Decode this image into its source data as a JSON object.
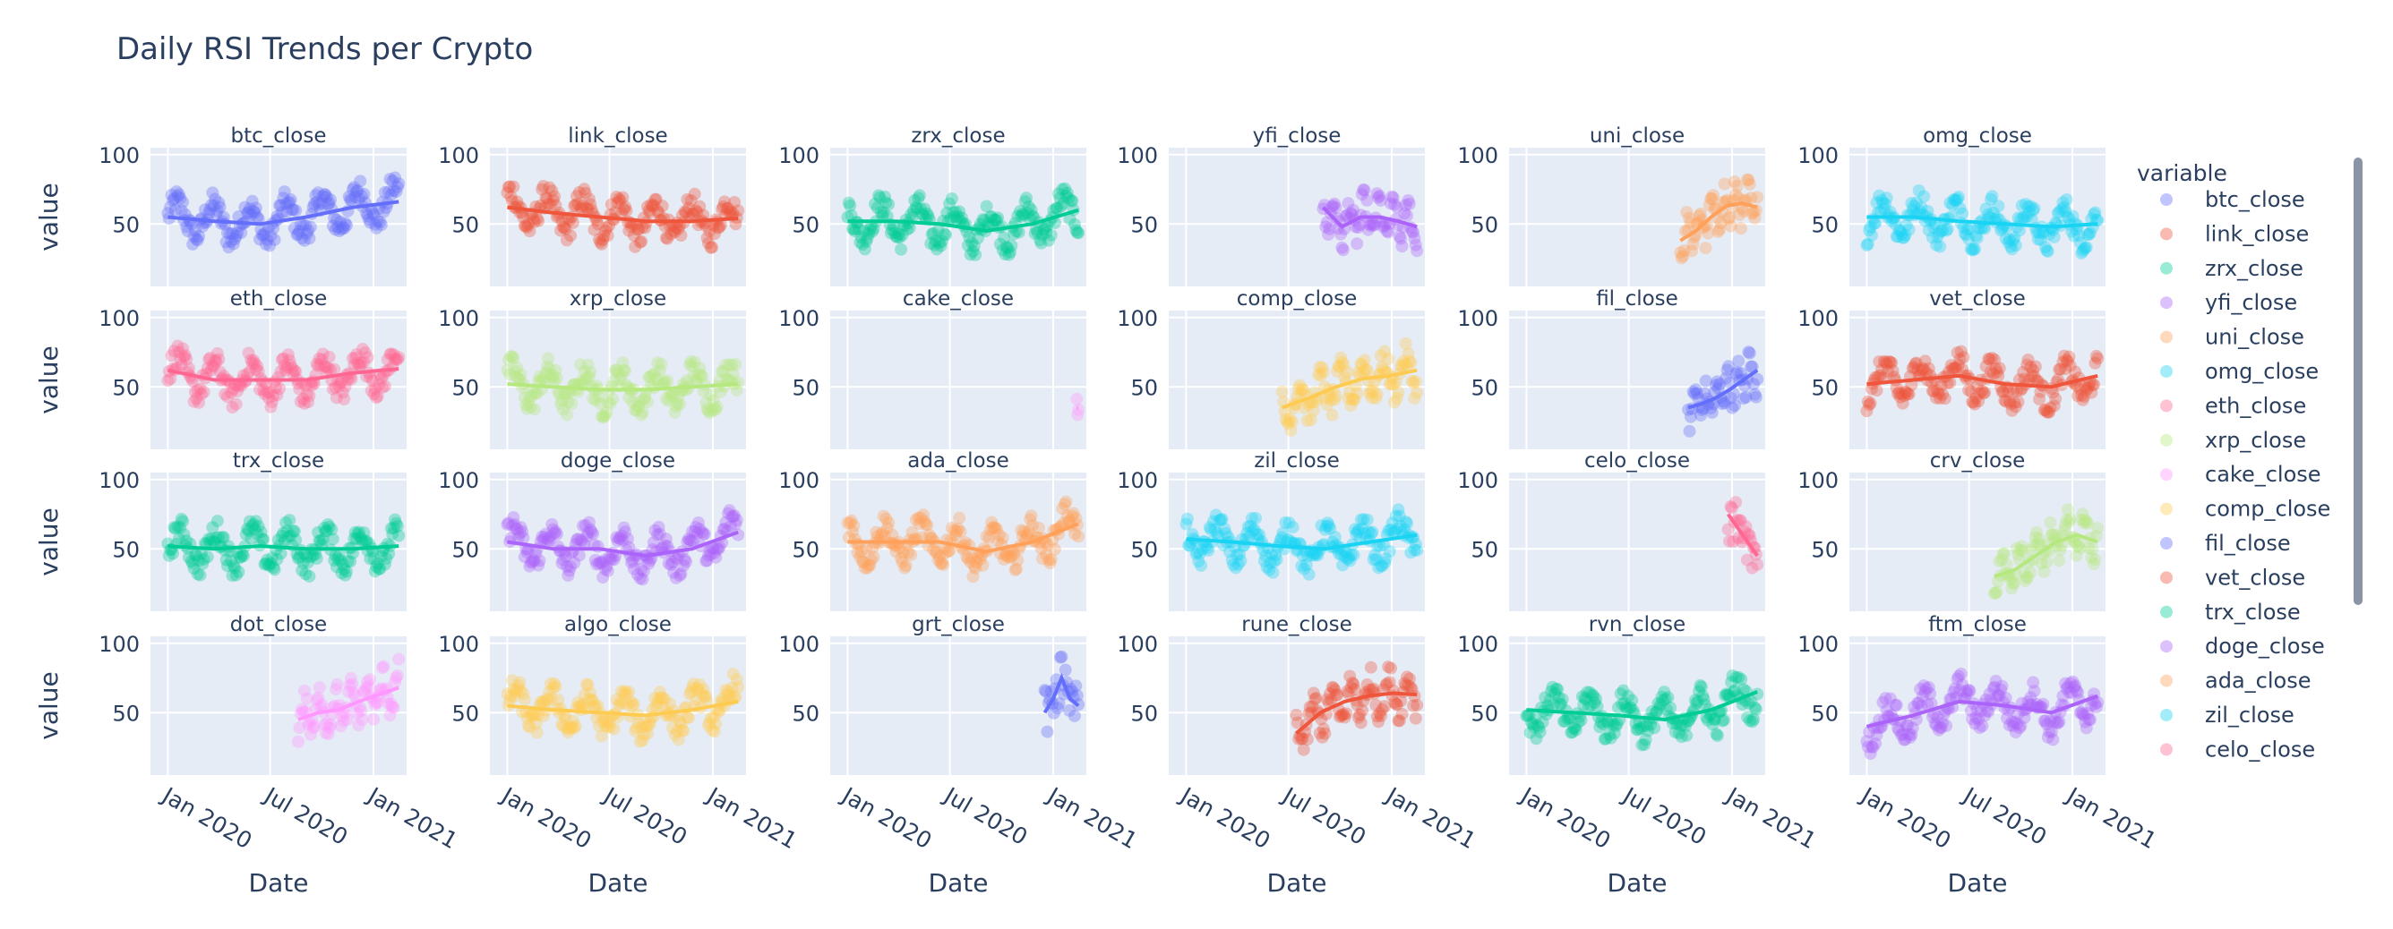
{
  "chart_data": {
    "type": "scatter",
    "title": "Daily RSI Trends per Crypto",
    "xlabel": "Date",
    "ylabel": "value",
    "legend_title": "variable",
    "legend_position": "right",
    "x_ticks": [
      "Jan 2020",
      "Jul 2020",
      "Jan 2021"
    ],
    "y_ticks": [
      50,
      100
    ],
    "xlim": [
      "2019-12-01",
      "2021-03-01"
    ],
    "ylim": [
      5,
      105
    ],
    "subplots": [
      {
        "name": "btc_close",
        "color": "#636efa",
        "start": "2020-01-01",
        "end": "2021-02-15",
        "trend": [
          55,
          52,
          50,
          55,
          62,
          66
        ]
      },
      {
        "name": "link_close",
        "color": "#EF553B",
        "start": "2020-01-01",
        "end": "2021-02-15",
        "trend": [
          62,
          58,
          55,
          52,
          52,
          54
        ]
      },
      {
        "name": "zrx_close",
        "color": "#00cc96",
        "start": "2020-01-01",
        "end": "2021-02-15",
        "trend": [
          52,
          52,
          50,
          45,
          50,
          60
        ]
      },
      {
        "name": "yfi_close",
        "color": "#ab63fa",
        "start": "2020-09-01",
        "end": "2021-02-15",
        "trend": [
          62,
          48,
          55,
          55,
          52,
          48
        ]
      },
      {
        "name": "uni_close",
        "color": "#FFA15A",
        "start": "2020-10-01",
        "end": "2021-02-15",
        "trend": [
          38,
          45,
          55,
          63,
          65,
          62
        ]
      },
      {
        "name": "omg_close",
        "color": "#19d3f3",
        "start": "2020-01-01",
        "end": "2021-02-15",
        "trend": [
          55,
          55,
          52,
          50,
          48,
          50
        ]
      },
      {
        "name": "eth_close",
        "color": "#FF6692",
        "start": "2020-01-01",
        "end": "2021-02-15",
        "trend": [
          62,
          55,
          55,
          55,
          60,
          63
        ]
      },
      {
        "name": "xrp_close",
        "color": "#B6E880",
        "start": "2020-01-01",
        "end": "2021-02-15",
        "trend": [
          52,
          50,
          48,
          48,
          50,
          52
        ]
      },
      {
        "name": "cake_close",
        "color": "#FF97FF",
        "start": "2021-02-12",
        "end": "2021-02-15",
        "trend": [
          35,
          35
        ]
      },
      {
        "name": "comp_close",
        "color": "#FECB52",
        "start": "2020-06-20",
        "end": "2021-02-15",
        "trend": [
          35,
          42,
          50,
          56,
          58,
          62
        ]
      },
      {
        "name": "fil_close",
        "color": "#636efa",
        "start": "2020-10-15",
        "end": "2021-02-15",
        "trend": [
          35,
          38,
          42,
          48,
          55,
          62
        ]
      },
      {
        "name": "vet_close",
        "color": "#EF553B",
        "start": "2020-01-01",
        "end": "2021-02-15",
        "trend": [
          52,
          55,
          58,
          52,
          50,
          58
        ]
      },
      {
        "name": "trx_close",
        "color": "#00cc96",
        "start": "2020-01-01",
        "end": "2021-02-15",
        "trend": [
          52,
          50,
          52,
          50,
          50,
          52
        ]
      },
      {
        "name": "doge_close",
        "color": "#ab63fa",
        "start": "2020-01-01",
        "end": "2021-02-15",
        "trend": [
          55,
          50,
          50,
          45,
          50,
          62
        ]
      },
      {
        "name": "ada_close",
        "color": "#FFA15A",
        "start": "2020-01-01",
        "end": "2021-02-15",
        "trend": [
          55,
          55,
          55,
          48,
          55,
          68
        ]
      },
      {
        "name": "zil_close",
        "color": "#19d3f3",
        "start": "2020-01-01",
        "end": "2021-02-15",
        "trend": [
          57,
          55,
          52,
          50,
          55,
          60
        ]
      },
      {
        "name": "celo_close",
        "color": "#FF6692",
        "start": "2020-12-25",
        "end": "2021-02-15",
        "trend": [
          75,
          65,
          55,
          45
        ]
      },
      {
        "name": "crv_close",
        "color": "#B6E880",
        "start": "2020-08-15",
        "end": "2021-02-15",
        "trend": [
          30,
          35,
          45,
          55,
          60,
          55
        ]
      },
      {
        "name": "dot_close",
        "color": "#FF97FF",
        "start": "2020-08-20",
        "end": "2021-02-15",
        "trend": [
          45,
          50,
          52,
          58,
          63,
          68
        ]
      },
      {
        "name": "algo_close",
        "color": "#FECB52",
        "start": "2020-01-01",
        "end": "2021-02-15",
        "trend": [
          55,
          52,
          50,
          48,
          52,
          58
        ]
      },
      {
        "name": "grt_close",
        "color": "#636efa",
        "start": "2020-12-17",
        "end": "2021-02-15",
        "trend": [
          50,
          60,
          75,
          60,
          55
        ]
      },
      {
        "name": "rune_close",
        "color": "#EF553B",
        "start": "2020-07-15",
        "end": "2021-02-15",
        "trend": [
          35,
          50,
          58,
          62,
          64,
          63
        ]
      },
      {
        "name": "rvn_close",
        "color": "#00cc96",
        "start": "2020-01-01",
        "end": "2021-02-15",
        "trend": [
          52,
          50,
          48,
          45,
          52,
          65
        ]
      },
      {
        "name": "ftm_close",
        "color": "#ab63fa",
        "start": "2020-01-01",
        "end": "2021-02-15",
        "trend": [
          40,
          48,
          58,
          55,
          50,
          62
        ]
      }
    ],
    "legend_entries": [
      {
        "name": "btc_close",
        "color": "#636efa"
      },
      {
        "name": "link_close",
        "color": "#EF553B"
      },
      {
        "name": "zrx_close",
        "color": "#00cc96"
      },
      {
        "name": "yfi_close",
        "color": "#ab63fa"
      },
      {
        "name": "uni_close",
        "color": "#FFA15A"
      },
      {
        "name": "omg_close",
        "color": "#19d3f3"
      },
      {
        "name": "eth_close",
        "color": "#FF6692"
      },
      {
        "name": "xrp_close",
        "color": "#B6E880"
      },
      {
        "name": "cake_close",
        "color": "#FF97FF"
      },
      {
        "name": "comp_close",
        "color": "#FECB52"
      },
      {
        "name": "fil_close",
        "color": "#636efa"
      },
      {
        "name": "vet_close",
        "color": "#EF553B"
      },
      {
        "name": "trx_close",
        "color": "#00cc96"
      },
      {
        "name": "doge_close",
        "color": "#ab63fa"
      },
      {
        "name": "ada_close",
        "color": "#FFA15A"
      },
      {
        "name": "zil_close",
        "color": "#19d3f3"
      },
      {
        "name": "celo_close",
        "color": "#FF6692"
      }
    ]
  }
}
